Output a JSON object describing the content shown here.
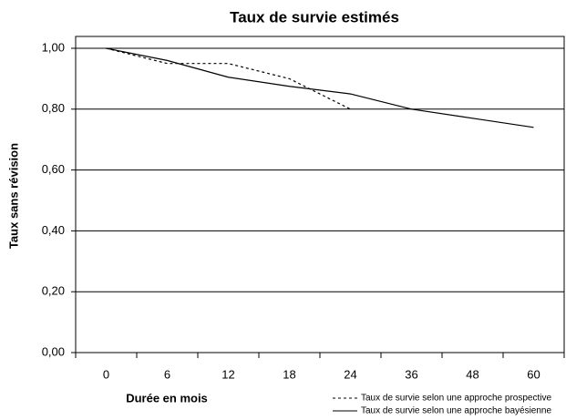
{
  "chart_data": {
    "type": "line",
    "title": "Taux de survie estimés",
    "x_label": "Durée en mois",
    "y_label": "Taux sans révision",
    "categories": [
      "0",
      "6",
      "12",
      "18",
      "24",
      "36",
      "48",
      "60"
    ],
    "series": [
      {
        "name": "Taux de survie selon une approche prospective",
        "color": "#000000",
        "line_style": "dashed",
        "values": [
          1.0,
          0.95,
          0.95,
          0.9,
          0.8,
          null,
          null,
          null
        ]
      },
      {
        "name": "Taux de survie selon une approche bayésienne",
        "color": "#000000",
        "line_style": "solid",
        "values": [
          1.0,
          0.96,
          0.905,
          0.875,
          0.85,
          0.8,
          0.77,
          0.74
        ]
      }
    ],
    "ylim": [
      0,
      1
    ],
    "yticks": [
      {
        "value": 0,
        "label": "0,00"
      },
      {
        "value": 0.2,
        "label": "0,20"
      },
      {
        "value": 0.4,
        "label": "0,40"
      },
      {
        "value": 0.6,
        "label": "0,60"
      },
      {
        "value": 0.8,
        "label": "0,80"
      },
      {
        "value": 1,
        "label": "1,00"
      }
    ],
    "grid": true,
    "legend": "bottom-right"
  }
}
